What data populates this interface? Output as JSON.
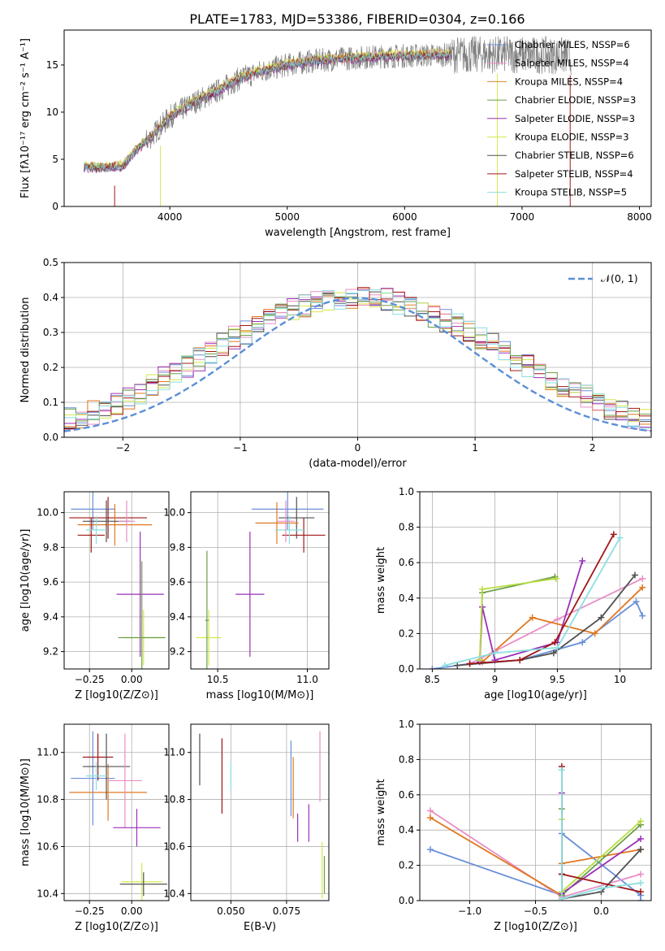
{
  "figure_title": "PLATE=1783, MJD=53386, FIBERID=0304, z=0.166",
  "colors": {
    "Chabrier MILES": "#6a8fd8",
    "Salpeter MILES": "#e88ec4",
    "Kroupa MILES": "#d98a2c",
    "Chabrier ELODIE": "#6b9e4a",
    "Salpeter ELODIE": "#9b30b8",
    "Kroupa ELODIE": "#d4e84a",
    "Chabrier STELIB": "#505050",
    "Salpeter STELIB": "#a01818",
    "Kroupa STELIB": "#8adfe0",
    "Chabrier MILES 2": "#6a8fd8",
    "Salpeter MILES 2": "#e88ec4",
    "Kroupa MILES 2": "#e07820",
    "Chabrier ELODIE 2": "#6b9e4a",
    "Salpeter ELODIE 2": "#b040c8",
    "Kroupa ELODIE 2": "#b8dd40",
    "data": "#808080",
    "normal": "#5b8fd6",
    "grid": "#b0b0b0"
  },
  "chart_data": [
    {
      "id": "spectrum",
      "type": "line",
      "xlabel": "wavelength [Angstrom, rest frame]",
      "ylabel": "Flux [fλ10⁻¹⁷ erg cm⁻² s⁻¹ A⁻¹]",
      "xlim": [
        3100,
        8100
      ],
      "ylim": [
        0,
        18.7
      ],
      "xticks": [
        4000,
        5000,
        6000,
        7000,
        8000
      ],
      "yticks": [
        0,
        5,
        10,
        15
      ],
      "grid": false,
      "legend_position": "upper-right",
      "legend": [
        "Chabrier MILES, NSSP=6",
        "Salpeter MILES, NSSP=4",
        "Kroupa MILES, NSSP=4",
        "Chabrier ELODIE, NSSP=3",
        "Salpeter ELODIE, NSSP=3",
        "Kroupa ELODIE, NSSP=3",
        "Chabrier STELIB, NSSP=6",
        "Salpeter STELIB, NSSP=4",
        "Kroupa STELIB, NSSP=5"
      ],
      "legend_colors": [
        "#6a8fd8",
        "#e88ec4",
        "#d98a2c",
        "#6b9e4a",
        "#9b30b8",
        "#d4e84a",
        "#505050",
        "#a01818",
        "#8adfe0"
      ],
      "continuum": {
        "x": [
          3270,
          3450,
          3600,
          3700,
          3850,
          4000,
          4200,
          4400,
          4600,
          4800,
          5000,
          5200,
          5500,
          5800,
          6100,
          6500,
          6900,
          7300,
          7420
        ],
        "y": [
          4.2,
          4.1,
          4.3,
          5.8,
          7.5,
          9.5,
          11.0,
          12.2,
          13.6,
          14.4,
          15.0,
          15.4,
          15.7,
          15.9,
          16.0,
          16.1,
          16.1,
          16.0,
          15.9
        ]
      },
      "models_continuum_offset": [
        0.0,
        0.2,
        -0.1,
        0.1,
        -0.2,
        0.3,
        -0.1,
        0.1,
        0.0
      ]
    },
    {
      "id": "residual_histogram",
      "type": "histogram",
      "xlabel": "(data-model)/error",
      "ylabel": "Normed distribution",
      "xlim": [
        -2.5,
        2.5
      ],
      "ylim": [
        0,
        0.5
      ],
      "xticks": [
        -2,
        -1,
        0,
        1,
        2
      ],
      "yticks": [
        0.0,
        0.1,
        0.2,
        0.3,
        0.4,
        0.5
      ],
      "grid": true,
      "legend_position": "upper-right",
      "legend": [
        "𝒩(0, 1)"
      ],
      "bin_width": 0.1,
      "series_base": [
        0.02,
        0.025,
        0.03,
        0.04,
        0.05,
        0.06,
        0.07,
        0.085,
        0.1,
        0.115,
        0.13,
        0.15,
        0.17,
        0.185,
        0.205,
        0.225,
        0.245,
        0.265,
        0.285,
        0.3,
        0.32,
        0.335,
        0.35,
        0.365,
        0.375,
        0.385,
        0.392,
        0.398,
        0.4,
        0.4,
        0.398,
        0.392,
        0.385,
        0.375,
        0.365,
        0.35,
        0.335,
        0.32,
        0.3,
        0.285,
        0.265,
        0.245,
        0.225,
        0.205,
        0.185,
        0.17,
        0.15,
        0.13,
        0.115,
        0.1,
        0.085,
        0.07,
        0.06,
        0.05,
        0.04,
        0.03,
        0.025,
        0.02
      ]
    },
    {
      "id": "age_vs_Z",
      "type": "errorbar",
      "xlabel": "Z [log10(Z/Z⊙)]",
      "ylabel": "age [log10(age/yr)]",
      "xlim": [
        -0.4,
        0.22
      ],
      "ylim": [
        9.1,
        10.12
      ],
      "xticks": [
        -0.25,
        0.0
      ],
      "xtick_labels": [
        "−0.25",
        "0.00"
      ],
      "yticks": [
        9.2,
        9.4,
        9.6,
        9.8,
        10.0
      ],
      "grid": true,
      "points": [
        {
          "x": -0.23,
          "xerr": 0.13,
          "y": 10.02,
          "yerr": 0.12,
          "c": "Chabrier MILES"
        },
        {
          "x": -0.14,
          "xerr": 0.23,
          "y": 9.97,
          "yerr": 0.12,
          "c": "Salpeter STELIB"
        },
        {
          "x": -0.1,
          "xerr": 0.22,
          "y": 9.93,
          "yerr": 0.12,
          "c": "Kroupa MILES 2"
        },
        {
          "x": -0.15,
          "xerr": 0.14,
          "y": 9.95,
          "yerr": 0.12,
          "c": "Chabrier STELIB"
        },
        {
          "x": -0.24,
          "xerr": 0.08,
          "y": 9.87,
          "yerr": 0.1,
          "c": "Salpeter STELIB"
        },
        {
          "x": -0.21,
          "xerr": 0.06,
          "y": 9.9,
          "yerr": 0.08,
          "c": "Kroupa STELIB"
        },
        {
          "x": -0.03,
          "xerr": 0.05,
          "y": 9.95,
          "yerr": 0.12,
          "c": "Salpeter MILES"
        },
        {
          "x": 0.05,
          "xerr": 0.14,
          "y": 9.53,
          "yerr": 0.36,
          "c": "Salpeter ELODIE"
        },
        {
          "x": 0.07,
          "xerr": 0.12,
          "y": 9.28,
          "yerr": 0.16,
          "c": "Kroupa ELODIE"
        },
        {
          "x": 0.06,
          "xerr": 0.14,
          "y": 9.28,
          "yerr": 0.44,
          "c": "Chabrier ELODIE"
        }
      ]
    },
    {
      "id": "age_vs_mass",
      "type": "errorbar",
      "xlabel": "mass [log10(M/M⊙)]",
      "ylabel": "",
      "xlim": [
        10.35,
        11.12
      ],
      "ylim": [
        9.1,
        10.12
      ],
      "xticks": [
        10.5,
        11.0
      ],
      "xtick_labels": [
        "10.5",
        "11.0"
      ],
      "yticks": [
        9.2,
        9.4,
        9.6,
        9.8,
        10.0
      ],
      "grid": true,
      "points": [
        {
          "x": 10.89,
          "xerr": 0.2,
          "y": 10.02,
          "yerr": 0.12,
          "c": "Chabrier MILES"
        },
        {
          "x": 10.94,
          "xerr": 0.1,
          "y": 9.97,
          "yerr": 0.12,
          "c": "Chabrier STELIB"
        },
        {
          "x": 10.83,
          "xerr": 0.12,
          "y": 9.94,
          "yerr": 0.12,
          "c": "Kroupa MILES 2"
        },
        {
          "x": 10.98,
          "xerr": 0.12,
          "y": 9.87,
          "yerr": 0.1,
          "c": "Salpeter STELIB"
        },
        {
          "x": 10.9,
          "xerr": 0.08,
          "y": 9.9,
          "yerr": 0.08,
          "c": "Kroupa STELIB"
        },
        {
          "x": 10.88,
          "xerr": 0.05,
          "y": 9.95,
          "yerr": 0.12,
          "c": "Salpeter MILES"
        },
        {
          "x": 10.68,
          "xerr": 0.08,
          "y": 9.53,
          "yerr": 0.36,
          "c": "Salpeter ELODIE"
        },
        {
          "x": 10.45,
          "xerr": 0.07,
          "y": 9.28,
          "yerr": 0.16,
          "c": "Kroupa ELODIE"
        },
        {
          "x": 10.44,
          "xerr": 0.01,
          "y": 9.38,
          "yerr": 0.4,
          "c": "Chabrier ELODIE"
        }
      ]
    },
    {
      "id": "mass_weight_vs_age",
      "type": "line",
      "xlabel": "age [log10(age/yr)]",
      "ylabel": "mass weight",
      "xlim": [
        8.4,
        10.25
      ],
      "ylim": [
        0,
        1.0
      ],
      "xticks": [
        8.5,
        9.0,
        9.5,
        10.0
      ],
      "yticks": [
        0.0,
        0.2,
        0.4,
        0.6,
        0.8,
        1.0
      ],
      "grid": true,
      "series": [
        {
          "c": "Chabrier MILES",
          "x": [
            8.5,
            8.8,
            9.2,
            9.7,
            10.13,
            10.18
          ],
          "y": [
            0.0,
            0.03,
            0.05,
            0.15,
            0.38,
            0.3
          ]
        },
        {
          "c": "Salpeter MILES",
          "x": [
            8.8,
            9.0,
            9.5,
            10.18
          ],
          "y": [
            0.03,
            0.1,
            0.28,
            0.51
          ]
        },
        {
          "c": "Kroupa MILES 2",
          "x": [
            8.9,
            9.3,
            9.8,
            10.18
          ],
          "y": [
            0.04,
            0.29,
            0.2,
            0.46
          ]
        },
        {
          "c": "Chabrier ELODIE",
          "x": [
            8.88,
            8.9,
            9.48
          ],
          "y": [
            0.05,
            0.43,
            0.52
          ]
        },
        {
          "c": "Salpeter ELODIE",
          "x": [
            8.88,
            8.9,
            9.0,
            9.5,
            9.7
          ],
          "y": [
            0.04,
            0.35,
            0.05,
            0.15,
            0.61
          ]
        },
        {
          "c": "Kroupa ELODIE 2",
          "x": [
            8.88,
            8.9,
            9.49
          ],
          "y": [
            0.05,
            0.45,
            0.51
          ]
        },
        {
          "c": "Chabrier STELIB",
          "x": [
            8.7,
            9.2,
            9.47,
            9.85,
            10.12
          ],
          "y": [
            0.02,
            0.05,
            0.09,
            0.29,
            0.53
          ]
        },
        {
          "c": "Salpeter STELIB",
          "x": [
            8.8,
            9.2,
            9.48,
            9.95
          ],
          "y": [
            0.03,
            0.05,
            0.15,
            0.76
          ]
        },
        {
          "c": "Kroupa STELIB",
          "x": [
            8.6,
            9.0,
            9.5,
            10.0
          ],
          "y": [
            0.02,
            0.09,
            0.12,
            0.74
          ]
        }
      ]
    },
    {
      "id": "mass_vs_Z",
      "type": "errorbar",
      "xlabel": "Z [log10(Z/Z⊙)]",
      "ylabel": "mass [log10(M/M⊙)]",
      "xlim": [
        -0.4,
        0.22
      ],
      "ylim": [
        10.37,
        11.12
      ],
      "xticks": [
        -0.25,
        0.0
      ],
      "xtick_labels": [
        "−0.25",
        "0.00"
      ],
      "yticks": [
        10.4,
        10.6,
        10.8,
        11.0
      ],
      "grid": true,
      "points": [
        {
          "x": -0.23,
          "xerr": 0.13,
          "y": 10.89,
          "yerr": 0.2,
          "c": "Chabrier MILES"
        },
        {
          "x": -0.2,
          "xerr": 0.09,
          "y": 10.98,
          "yerr": 0.1,
          "c": "Salpeter STELIB"
        },
        {
          "x": -0.14,
          "xerr": 0.23,
          "y": 10.83,
          "yerr": 0.12,
          "c": "Kroupa MILES 2"
        },
        {
          "x": -0.15,
          "xerr": 0.14,
          "y": 10.94,
          "yerr": 0.14,
          "c": "Chabrier STELIB"
        },
        {
          "x": -0.21,
          "xerr": 0.06,
          "y": 10.9,
          "yerr": 0.06,
          "c": "Kroupa STELIB"
        },
        {
          "x": -0.04,
          "xerr": 0.1,
          "y": 10.88,
          "yerr": 0.2,
          "c": "Salpeter MILES"
        },
        {
          "x": 0.03,
          "xerr": 0.14,
          "y": 10.68,
          "yerr": 0.08,
          "c": "Salpeter ELODIE"
        },
        {
          "x": 0.06,
          "xerr": 0.12,
          "y": 10.45,
          "yerr": 0.08,
          "c": "Kroupa ELODIE"
        },
        {
          "x": 0.07,
          "xerr": 0.14,
          "y": 10.44,
          "yerr": 0.05,
          "c": "Chabrier STELIB"
        }
      ]
    },
    {
      "id": "mass_vs_EBV",
      "type": "errorbar",
      "xlabel": "E(B-V)",
      "ylabel": "",
      "xlim": [
        0.032,
        0.094
      ],
      "ylim": [
        10.37,
        11.12
      ],
      "xticks": [
        0.05,
        0.075
      ],
      "xtick_labels": [
        "0.050",
        "0.075"
      ],
      "yticks": [
        10.4,
        10.6,
        10.8,
        11.0
      ],
      "grid": true,
      "points": [
        {
          "x": 0.036,
          "xerr": 0,
          "y": 10.97,
          "yerr": 0.11,
          "c": "Chabrier STELIB"
        },
        {
          "x": 0.046,
          "xerr": 0,
          "y": 10.9,
          "yerr": 0.16,
          "c": "Salpeter STELIB"
        },
        {
          "x": 0.05,
          "xerr": 0,
          "y": 10.9,
          "yerr": 0.06,
          "c": "Kroupa STELIB"
        },
        {
          "x": 0.077,
          "xerr": 0,
          "y": 10.89,
          "yerr": 0.16,
          "c": "Chabrier MILES"
        },
        {
          "x": 0.078,
          "xerr": 0,
          "y": 10.85,
          "yerr": 0.13,
          "c": "Kroupa MILES 2"
        },
        {
          "x": 0.08,
          "xerr": 0,
          "y": 10.68,
          "yerr": 0.06,
          "c": "Salpeter ELODIE"
        },
        {
          "x": 0.085,
          "xerr": 0,
          "y": 10.7,
          "yerr": 0.08,
          "c": "Salpeter ELODIE"
        },
        {
          "x": 0.09,
          "xerr": 0,
          "y": 10.94,
          "yerr": 0.15,
          "c": "Salpeter MILES"
        },
        {
          "x": 0.091,
          "xerr": 0,
          "y": 10.5,
          "yerr": 0.12,
          "c": "Kroupa ELODIE"
        },
        {
          "x": 0.092,
          "xerr": 0,
          "y": 10.48,
          "yerr": 0.08,
          "c": "Chabrier ELODIE"
        }
      ]
    },
    {
      "id": "mass_weight_vs_Z",
      "type": "line",
      "xlabel": "Z [log10(Z/Z⊙)]",
      "ylabel": "mass weight",
      "xlim": [
        -1.38,
        0.38
      ],
      "ylim": [
        0,
        1.0
      ],
      "xticks": [
        -1.0,
        -0.5,
        0.0
      ],
      "xtick_labels": [
        "−1.0",
        "−0.5",
        "0.0"
      ],
      "yticks": [
        0.0,
        0.2,
        0.4,
        0.6,
        0.8,
        1.0
      ],
      "grid": true,
      "series": [
        {
          "c": "Chabrier MILES",
          "x": [
            -1.3,
            -0.3,
            -0.3,
            0.3,
            0.3
          ],
          "y": [
            0.29,
            0.03,
            0.38,
            0.03,
            0.0
          ]
        },
        {
          "c": "Salpeter MILES",
          "x": [
            -1.3,
            -0.3,
            0.3
          ],
          "y": [
            0.51,
            0.02,
            0.15
          ]
        },
        {
          "c": "Kroupa MILES 2",
          "x": [
            -1.3,
            -0.3,
            -0.3,
            0.3
          ],
          "y": [
            0.47,
            0.03,
            0.21,
            0.29
          ]
        },
        {
          "c": "Chabrier ELODIE",
          "x": [
            -0.3,
            -0.3,
            0.3
          ],
          "y": [
            0.52,
            0.03,
            0.43
          ]
        },
        {
          "c": "Salpeter ELODIE",
          "x": [
            -0.3,
            -0.3,
            0.3
          ],
          "y": [
            0.61,
            0.04,
            0.35
          ]
        },
        {
          "c": "Kroupa ELODIE 2",
          "x": [
            -0.3,
            -0.3,
            0.3
          ],
          "y": [
            0.46,
            0.05,
            0.45
          ]
        },
        {
          "c": "Chabrier STELIB",
          "x": [
            -0.3,
            -0.3,
            0.0,
            0.3
          ],
          "y": [
            0.15,
            0.01,
            0.05,
            0.29
          ]
        },
        {
          "c": "Salpeter STELIB",
          "x": [
            -0.3,
            -0.3,
            0.3
          ],
          "y": [
            0.76,
            0.15,
            0.05
          ]
        },
        {
          "c": "Kroupa STELIB",
          "x": [
            -0.3,
            -0.3,
            0.0,
            0.3
          ],
          "y": [
            0.74,
            0.01,
            0.07,
            0.1
          ]
        }
      ]
    }
  ]
}
